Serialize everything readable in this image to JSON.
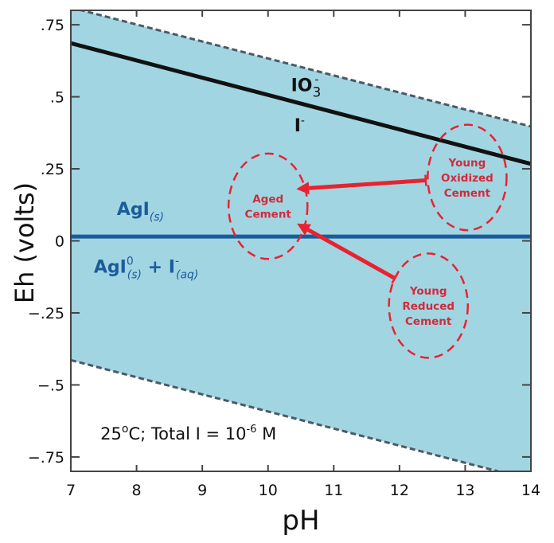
{
  "chart_data": {
    "type": "line",
    "title": "",
    "xlabel": "pH",
    "ylabel": "Eh (volts)",
    "xlim": [
      7,
      14
    ],
    "ylim": [
      -0.8,
      0.8
    ],
    "grid": false,
    "x_ticks": [
      7,
      8,
      9,
      10,
      11,
      12,
      13,
      14
    ],
    "x_tick_labels": [
      "7",
      "8",
      "9",
      "10",
      "11",
      "12",
      "13",
      "14"
    ],
    "y_ticks": [
      0.75,
      0.5,
      0.25,
      0,
      -0.25,
      -0.5,
      -0.75
    ],
    "y_tick_labels": [
      ".75",
      ".5",
      ".25",
      "0",
      "-.25",
      "-.5",
      "-.75"
    ],
    "water_stability_field": {
      "fill_color": "#a2d5e2",
      "upper_boundary": {
        "x": [
          7,
          14
        ],
        "y": [
          0.81,
          0.397
        ],
        "style": "dashed",
        "color": "#4a5a66"
      },
      "lower_boundary": {
        "x": [
          7,
          13.5
        ],
        "y": [
          -0.414,
          -0.8
        ],
        "style": "dashed",
        "color": "#4a5a66"
      }
    },
    "series": [
      {
        "name": "IO3- / I- boundary",
        "x": [
          7,
          14
        ],
        "y": [
          0.686,
          0.267
        ],
        "color": "#111111",
        "style": "solid"
      },
      {
        "name": "AgI(s) / AgI0(s) + I-(aq) boundary",
        "x": [
          7,
          14
        ],
        "y": [
          0.015,
          0.015
        ],
        "color": "#1a5c9b",
        "style": "solid"
      }
    ],
    "species_labels": [
      {
        "name": "io3-label",
        "main": "IO",
        "sub": "3",
        "sup": "-",
        "x": 10.35,
        "y": 0.52,
        "color": "black"
      },
      {
        "name": "iodide-label",
        "main": "I",
        "sup": "-",
        "x": 10.4,
        "y": 0.38,
        "color": "black"
      },
      {
        "name": "agi-solid-label",
        "main": "AgI",
        "sub": "(s)",
        "x": 7.7,
        "y": 0.09,
        "color": "blue"
      },
      {
        "name": "agi0-label",
        "main": "AgI",
        "sup": "0",
        "sub": "(s)",
        "rest": "+ I",
        "rest_sup": "-",
        "rest_sub": "(aq)",
        "x": 7.35,
        "y": -0.11,
        "color": "blue"
      }
    ],
    "regions": [
      {
        "name": "aged-cement",
        "lines": [
          "Aged",
          "Cement"
        ],
        "cx": 10.0,
        "cy": 0.12,
        "rx": 0.6,
        "ry": 0.183
      },
      {
        "name": "young-oxidized-cement",
        "lines": [
          "Young",
          "Oxidized",
          "Cement"
        ],
        "cx": 13.03,
        "cy": 0.22,
        "rx": 0.6,
        "ry": 0.183
      },
      {
        "name": "young-reduced-cement",
        "lines": [
          "Young",
          "Reduced",
          "Cement"
        ],
        "cx": 12.44,
        "cy": -0.225,
        "rx": 0.6,
        "ry": 0.181
      }
    ],
    "arrows": [
      {
        "name": "oxidized-to-aged-arrow",
        "from": [
          12.4,
          0.21
        ],
        "to": [
          10.43,
          0.18
        ],
        "color": "#e8232f"
      },
      {
        "name": "reduced-to-aged-arrow",
        "from": [
          11.93,
          -0.13
        ],
        "to": [
          10.44,
          0.06
        ],
        "color": "#e8232f"
      }
    ],
    "annotations": [
      {
        "name": "conditions-note",
        "parts": [
          "25",
          "o",
          "C; Total I = 10",
          "-6",
          " M"
        ],
        "x": 7.45,
        "y": -0.69
      }
    ]
  },
  "colors": {
    "field": "#a2d5e2",
    "red": "#e8232f",
    "region_text": "#d32a3a",
    "blue_line": "#1a5c9b",
    "black_line": "#111111",
    "dashed": "#4a5a66"
  }
}
